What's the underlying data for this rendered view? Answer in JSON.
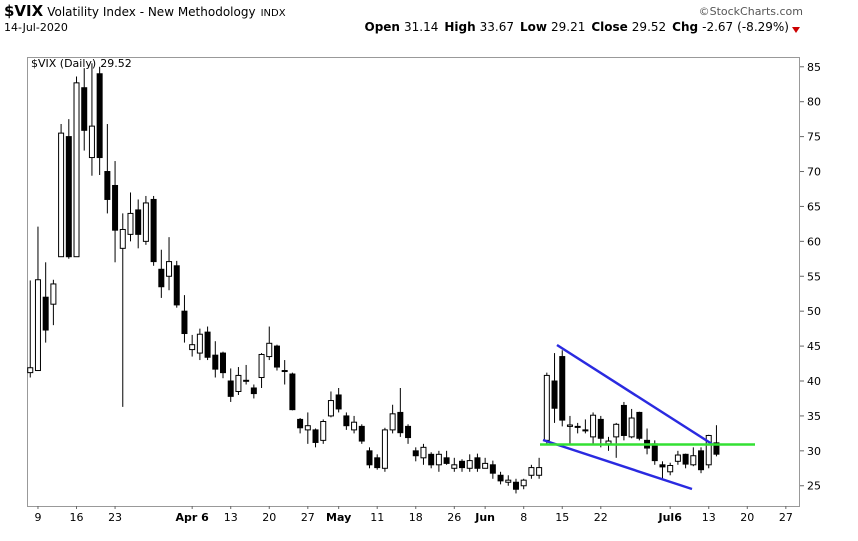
{
  "header": {
    "symbol": "$VIX",
    "name": "Volatility Index - New Methodology",
    "exchange": "INDX",
    "source": "©StockCharts.com",
    "date": "14-Jul-2020",
    "quote": [
      {
        "label": "Open",
        "value": 31.14
      },
      {
        "label": "High",
        "value": 33.67
      },
      {
        "label": "Low",
        "value": 29.21
      },
      {
        "label": "Close",
        "value": 29.52
      },
      {
        "label": "Chg",
        "value": -2.67,
        "pct": "(-8.29%)"
      }
    ]
  },
  "chart_data": {
    "type": "candlestick",
    "legend": "$VIX (Daily)",
    "categories": [
      null,
      "9",
      null,
      null,
      null,
      null,
      "16",
      null,
      null,
      null,
      null,
      "23",
      null,
      null,
      null,
      null,
      null,
      null,
      null,
      null,
      null,
      "Apr 6",
      null,
      null,
      null,
      null,
      "13",
      null,
      null,
      null,
      null,
      "20",
      null,
      null,
      null,
      null,
      "27",
      null,
      null,
      null,
      "May",
      null,
      null,
      null,
      null,
      "11",
      null,
      null,
      null,
      null,
      "18",
      null,
      null,
      null,
      null,
      "26",
      null,
      null,
      null,
      "Jun",
      null,
      null,
      null,
      null,
      "8",
      null,
      null,
      null,
      null,
      "15",
      null,
      null,
      null,
      null,
      "22",
      null,
      null,
      null,
      null,
      null,
      null,
      null,
      null,
      "Jul6",
      null,
      null,
      null,
      null,
      "13",
      null,
      null,
      null,
      null,
      "20",
      null,
      null,
      null,
      null,
      "27",
      null
    ],
    "open": [
      41.2,
      41.5,
      52,
      51,
      57.8,
      75,
      57.8,
      82,
      72,
      84,
      70,
      68,
      59,
      61,
      64.5,
      60,
      66,
      56,
      55,
      56.5,
      50,
      44.5,
      44,
      47,
      43.7,
      44,
      40,
      38.5,
      40,
      39,
      40.5,
      43.5,
      45,
      41.5,
      41,
      34.5,
      33,
      33,
      31.5,
      35,
      38,
      35,
      33,
      33.5,
      30,
      29,
      27.5,
      33,
      35.5,
      33.5,
      30,
      29,
      29.5,
      28,
      29,
      27.5,
      28.5,
      27.5,
      29,
      27.5,
      28,
      26.5,
      25.5,
      25.5,
      25,
      26.5,
      26.5,
      31.5,
      40,
      43.5,
      33.5,
      33.5,
      33,
      32,
      34.5,
      31,
      32,
      36.5,
      32,
      35.5,
      31.5,
      31,
      28,
      27,
      28.5,
      29.5,
      28,
      30,
      28,
      31.14,
      null,
      null,
      null,
      null,
      null,
      null,
      null,
      null,
      null,
      null
    ],
    "high": [
      54.4,
      62.1,
      57,
      54.5,
      76.8,
      77.5,
      83.6,
      84.8,
      85.5,
      85,
      76.8,
      71.5,
      64,
      67,
      66,
      66.5,
      66.5,
      58.8,
      60.6,
      57.2,
      52.3,
      46.6,
      47.5,
      47.8,
      45.7,
      44.2,
      41.8,
      42,
      42.3,
      39.5,
      44,
      47.8,
      45.2,
      43,
      41.2,
      34.7,
      35.5,
      33.2,
      34.5,
      38.5,
      39,
      35.5,
      35,
      33.8,
      30.5,
      29.5,
      33.3,
      36.6,
      39,
      33.8,
      30.5,
      31,
      29.8,
      30,
      30,
      29,
      28.8,
      29.5,
      29.6,
      29,
      28.6,
      27,
      26.5,
      26,
      26,
      28,
      29,
      41.2,
      44,
      44.4,
      35,
      34,
      34.5,
      35.5,
      35,
      32,
      34,
      37,
      36,
      35.6,
      33.2,
      31.5,
      28.5,
      28.3,
      30,
      29.6,
      30.5,
      30.5,
      32.3,
      33.67,
      null,
      null,
      null,
      null,
      null,
      null,
      null,
      null,
      null,
      null
    ],
    "low": [
      40.5,
      41.5,
      45.5,
      48,
      57.8,
      57.5,
      57.8,
      73,
      69.4,
      69.5,
      64,
      57,
      36.3,
      60,
      59,
      59.5,
      56.5,
      51.9,
      53,
      50.5,
      45.5,
      43.5,
      43,
      43,
      40.5,
      40.4,
      37,
      38,
      39.5,
      37.5,
      39,
      43,
      41.5,
      39.5,
      35.8,
      32.5,
      31,
      30.5,
      31,
      34.8,
      35.5,
      33,
      32.5,
      31,
      27.5,
      27.3,
      27,
      32.5,
      32,
      31,
      28.5,
      28,
      27.5,
      27,
      28,
      27,
      27,
      27,
      27,
      27.5,
      26,
      25.2,
      25,
      23.9,
      24.5,
      26,
      26,
      31,
      34,
      33.5,
      31,
      32.5,
      32.5,
      31,
      30.5,
      30,
      29,
      31.5,
      31.8,
      31.5,
      29.5,
      28,
      26,
      26.5,
      28,
      27.5,
      27.8,
      26.8,
      27.5,
      29.21,
      null,
      null,
      null,
      null,
      null,
      null,
      null,
      null,
      null,
      null
    ],
    "close": [
      41.9,
      54.5,
      47.3,
      53.9,
      75.5,
      57.8,
      82.7,
      75.9,
      76.5,
      72,
      66,
      61.6,
      61.7,
      64,
      61,
      65.5,
      57.1,
      53.5,
      57.1,
      50.9,
      46.8,
      45.2,
      46.7,
      43.4,
      41.7,
      41.2,
      37.8,
      40.8,
      40.1,
      38.2,
      43.8,
      45.4,
      42,
      41.4,
      35.9,
      33.3,
      33.6,
      31.2,
      34.2,
      37.2,
      36,
      33.6,
      34.1,
      31.4,
      28,
      27.6,
      33,
      35.3,
      32.6,
      31.9,
      29.3,
      30.5,
      28,
      29.5,
      28.2,
      28,
      27.6,
      28.6,
      27.5,
      28.2,
      26.8,
      25.7,
      25.8,
      24.5,
      25.8,
      27.6,
      27.6,
      40.8,
      36.1,
      34.4,
      33.7,
      33.4,
      32.9,
      35.1,
      31.8,
      31.4,
      33.8,
      32.2,
      34.7,
      31.8,
      30.4,
      28.6,
      27.7,
      27.9,
      29.4,
      28.1,
      29.3,
      27.3,
      32.2,
      29.52,
      null,
      null,
      null,
      null,
      null,
      null,
      null,
      null,
      null,
      null
    ],
    "ylim": [
      22.1,
      86.4
    ],
    "yticks": [
      25,
      30,
      35,
      40,
      45,
      50,
      55,
      60,
      65,
      70,
      75,
      80,
      85
    ],
    "up_color": "#ffffff",
    "down_color": "#000000",
    "reference_line": {
      "value": 30.9,
      "color": "#33e033"
    }
  }
}
